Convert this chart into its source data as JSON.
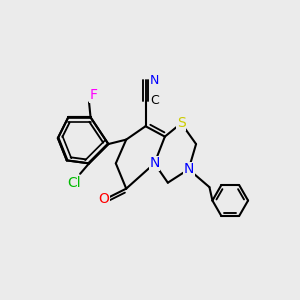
{
  "background_color": "#EBEBEB",
  "figsize": [
    3.0,
    3.0
  ],
  "dpi": 100,
  "bond_color": "#000000",
  "bond_width": 1.5,
  "atom_colors": {
    "N": "#0000FF",
    "O": "#FF0000",
    "S": "#CCCC00",
    "F": "#FF00FF",
    "Cl": "#00BB00",
    "C": "#000000"
  },
  "font_size": 9,
  "font_size_small": 8
}
